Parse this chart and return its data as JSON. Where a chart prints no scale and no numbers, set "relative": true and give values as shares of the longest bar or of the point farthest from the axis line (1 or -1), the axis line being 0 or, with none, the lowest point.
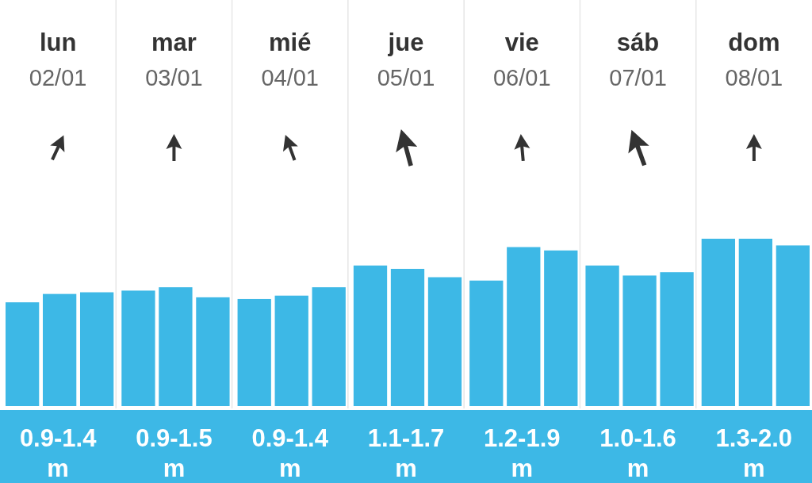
{
  "chart_data": {
    "type": "bar",
    "relative": true,
    "categories": [
      "lun",
      "mar",
      "mié",
      "jue",
      "vie",
      "sáb",
      "dom"
    ],
    "series": [
      {
        "color": "#3db8e6",
        "values": [
          0.62,
          0.69,
          0.64,
          0.84,
          0.75,
          0.84,
          1
        ]
      },
      {
        "color": "#3db8e6",
        "values": [
          0.67,
          0.71,
          0.66,
          0.82,
          0.95,
          0.78,
          1.0
        ]
      },
      {
        "color": "#3db8e6",
        "values": [
          0.68,
          0.65,
          0.71,
          0.77,
          0.93,
          0.8,
          0.96
        ]
      }
    ],
    "annotations": [
      "02/01",
      "03/01",
      "04/01",
      "05/01",
      "06/01",
      "07/01",
      "08/01",
      "0.9-1.4 m",
      "0.9-1.5 m",
      "0.9-1.4 m",
      "1.1-1.7 m",
      "1.2-1.9 m",
      "1.0-1.6 m",
      "1.3-2.0 m"
    ]
  }
}
